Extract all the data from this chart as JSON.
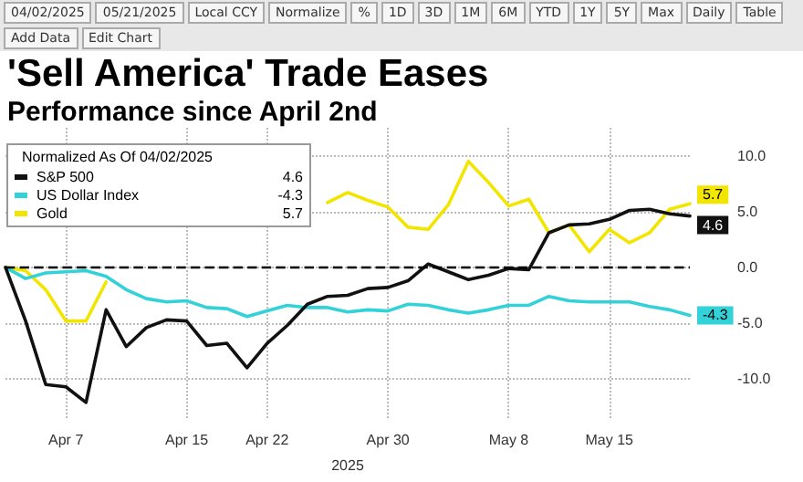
{
  "chart_data": {
    "type": "line",
    "title": "'Sell America' Trade Eases",
    "subtitle": "Performance since April 2nd",
    "xlabel": "2025",
    "legend_title": "Normalized As Of 04/02/2025",
    "annotations": [
      "04/02/2025",
      "05/21/2025",
      "Local CCY",
      "Normalize",
      "%",
      "1D",
      "3D",
      "1M",
      "6M",
      "YTD",
      "1Y",
      "5Y",
      "Max",
      "Daily",
      "Table",
      "Add Data",
      "Edit Chart",
      "4.6",
      "-4.3",
      "5.7"
    ],
    "categories": [
      null,
      null,
      null,
      "Apr 7",
      null,
      null,
      null,
      null,
      null,
      "Apr 15",
      null,
      null,
      null,
      "Apr 22",
      null,
      null,
      null,
      null,
      null,
      "Apr 30",
      null,
      null,
      null,
      null,
      null,
      "May 8",
      null,
      null,
      null,
      null,
      "May 15",
      null,
      null,
      null,
      null
    ],
    "series": [
      {
        "name": "S&P 500",
        "color": "#111111",
        "values": [
          0,
          -4.8,
          -10.5,
          -10.7,
          -12.1,
          -3.8,
          -7.1,
          -5.4,
          -4.7,
          -4.8,
          -7.0,
          -6.8,
          -9.0,
          -6.8,
          -5.2,
          -3.3,
          -2.6,
          -2.5,
          -1.9,
          -1.8,
          -1.2,
          0.3,
          -0.4,
          -1.1,
          -0.7,
          -0.1,
          -0.2,
          3.1,
          3.8,
          3.9,
          4.3,
          5.1,
          5.2,
          4.8,
          4.6
        ],
        "value_labels": [
          null,
          null,
          null,
          null,
          null,
          null,
          null,
          null,
          null,
          null,
          null,
          null,
          null,
          null,
          null,
          null,
          null,
          null,
          null,
          null,
          null,
          null,
          null,
          null,
          null,
          null,
          null,
          null,
          null,
          null,
          null,
          null,
          null,
          null,
          "4.6"
        ]
      },
      {
        "name": "US Dollar Index",
        "color": "#33d1d8",
        "values": [
          0,
          -1.0,
          -0.5,
          -0.4,
          -0.3,
          -0.8,
          -2.0,
          -2.8,
          -3.1,
          -3.0,
          -3.6,
          -3.7,
          -4.4,
          -3.9,
          -3.4,
          -3.6,
          -3.6,
          -4.0,
          -3.8,
          -3.9,
          -3.3,
          -3.4,
          -3.8,
          -4.1,
          -3.8,
          -3.4,
          -3.4,
          -2.6,
          -3.0,
          -3.1,
          -3.1,
          -3.1,
          -3.5,
          -3.8,
          -4.3
        ],
        "value_labels": [
          null,
          null,
          null,
          null,
          null,
          null,
          null,
          null,
          null,
          null,
          null,
          null,
          null,
          null,
          null,
          null,
          null,
          null,
          null,
          null,
          null,
          null,
          null,
          null,
          null,
          null,
          null,
          null,
          null,
          null,
          null,
          null,
          null,
          null,
          "-4.3"
        ]
      },
      {
        "name": "Gold",
        "color": "#f2e600",
        "values": [
          0,
          -0.3,
          -2.0,
          -4.8,
          -4.8,
          -1.3,
          null,
          null,
          null,
          null,
          null,
          null,
          null,
          null,
          null,
          null,
          5.8,
          6.7,
          6.0,
          5.4,
          3.6,
          3.4,
          5.6,
          9.5,
          7.6,
          5.5,
          6.1,
          3.1,
          3.8,
          1.4,
          3.4,
          2.2,
          3.1,
          5.2,
          5.7
        ],
        "value_labels": [
          null,
          null,
          null,
          null,
          null,
          null,
          null,
          null,
          null,
          null,
          null,
          null,
          null,
          null,
          null,
          null,
          null,
          null,
          null,
          null,
          null,
          null,
          null,
          null,
          null,
          null,
          null,
          null,
          null,
          null,
          null,
          null,
          null,
          null,
          "5.7"
        ]
      }
    ],
    "ylim": [
      -13.5,
      12.5
    ],
    "yticks": [
      {
        "value": -10,
        "label": "-10.0"
      },
      {
        "value": -5,
        "label": "-5.0"
      },
      {
        "value": 0,
        "label": "0.0"
      },
      {
        "value": 5,
        "label": "5.0"
      },
      {
        "value": 10,
        "label": "10.0"
      }
    ],
    "ref_lines": [
      {
        "axis": "y",
        "value": 0,
        "color": "#000000",
        "line_style": "dashed"
      }
    ],
    "grid": true,
    "legend": "top left",
    "marker": "none",
    "line_style": "solid"
  }
}
